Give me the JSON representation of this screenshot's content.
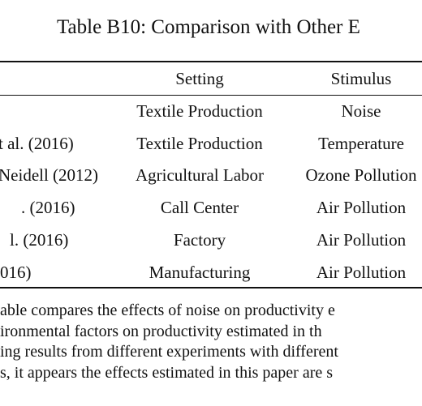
{
  "table": {
    "title": "Table B10: Comparison with Other E",
    "header": [
      "Setting",
      "Stimulus"
    ],
    "rows": [
      {
        "setting": "Textile Production",
        "stimulus": "Noise"
      },
      {
        "study": "t al. (2016)",
        "setting": "Textile Production",
        "stimulus": "Temperature"
      },
      {
        "study": "Neidell (2012)",
        "setting": "Agricultural Labor",
        "stimulus": "Ozone Pollution"
      },
      {
        "study": ". (2016)",
        "setting": "Call Center",
        "stimulus": "Air Pollution"
      },
      {
        "study": "l. (2016)",
        "setting": "Factory",
        "stimulus": "Air Pollution"
      },
      {
        "study": "016)",
        "setting": "Manufacturing",
        "stimulus": "Air Pollution"
      }
    ],
    "note": [
      "able compares the effects of noise on productivity e",
      "ironmental factors on productivity estimated in th",
      "ing results from different experiments with different",
      "s, it appears the effects estimated in this paper are s"
    ]
  }
}
